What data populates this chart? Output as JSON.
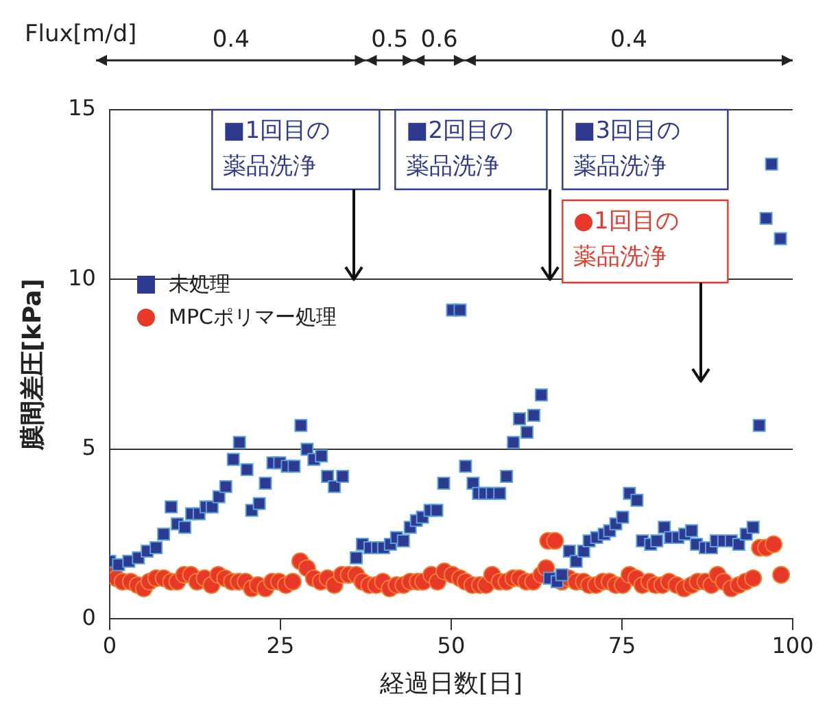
{
  "chart_data": {
    "type": "scatter",
    "xlabel": "経過日数[日]",
    "ylabel": "膜間差圧[kPa]",
    "xlim": [
      0,
      100
    ],
    "xticks": [
      0,
      25,
      50,
      75,
      100
    ],
    "ylim": [
      0,
      15
    ],
    "yticks": [
      0,
      5,
      10,
      15
    ],
    "grid": "y",
    "legend": "top left",
    "series": [
      {
        "name": "未処理",
        "color": "#2e3a8f",
        "marker": "square",
        "x": [
          0,
          1.3,
          2.8,
          4.2,
          5.5,
          6.8,
          7.9,
          9.0,
          9.9,
          11.0,
          12.0,
          13.1,
          14.1,
          15.0,
          16.0,
          17.0,
          18.1,
          19.0,
          20.1,
          20.8,
          21.9,
          22.8,
          23.9,
          24.9,
          26.0,
          27.0,
          28.0,
          28.9,
          29.9,
          31.0,
          31.9,
          32.9,
          34.1,
          36.1,
          37.0,
          38.1,
          39.2,
          40.1,
          41.1,
          42.0,
          43.0,
          44.0,
          44.9,
          45.8,
          46.9,
          47.9,
          48.9,
          50.2,
          51.3,
          52.1,
          53.2,
          54.0,
          54.9,
          56.0,
          57.1,
          58.1,
          59.1,
          60.0,
          61.1,
          62.1,
          63.2,
          64.4,
          65.5,
          66.2,
          67.3,
          68.3,
          69.4,
          70.2,
          71.3,
          72.4,
          73.2,
          74.1,
          75.1,
          76.1,
          77.2,
          78.0,
          79.2,
          80.1,
          81.2,
          82.1,
          83.2,
          84.2,
          85.2,
          85.9,
          87.2,
          88.1,
          88.8,
          89.9,
          91.0,
          92.1,
          93.2,
          94.2,
          95.1,
          96.1,
          96.9,
          98.2
        ],
        "values": [
          1.7,
          1.6,
          1.7,
          1.8,
          2.0,
          2.1,
          2.5,
          3.3,
          2.8,
          2.7,
          3.1,
          3.1,
          3.3,
          3.3,
          3.6,
          3.9,
          4.7,
          5.2,
          4.4,
          3.2,
          3.4,
          4.0,
          4.6,
          4.6,
          4.5,
          4.5,
          5.7,
          5.0,
          4.7,
          4.8,
          4.2,
          3.9,
          4.2,
          1.8,
          2.2,
          2.1,
          2.1,
          2.1,
          2.2,
          2.4,
          2.3,
          2.7,
          2.9,
          3.0,
          3.2,
          3.2,
          4.0,
          9.1,
          9.1,
          4.5,
          4.0,
          3.7,
          3.7,
          3.7,
          3.7,
          4.2,
          5.2,
          5.9,
          5.5,
          6.0,
          6.6,
          1.2,
          1.1,
          1.3,
          2.0,
          1.7,
          2.0,
          2.3,
          2.4,
          2.5,
          2.6,
          2.8,
          3.0,
          3.7,
          3.5,
          2.3,
          2.2,
          2.3,
          2.7,
          2.4,
          2.4,
          2.5,
          2.6,
          2.2,
          2.1,
          2.1,
          2.3,
          2.3,
          2.3,
          2.2,
          2.5,
          2.7,
          5.7,
          11.8,
          13.4,
          11.2
        ]
      },
      {
        "name": "MPCポリマー処理",
        "color": "#e8382a",
        "marker": "circle",
        "x": [
          0,
          1.0,
          1.9,
          3.1,
          4.1,
          5.0,
          5.8,
          6.8,
          7.9,
          9.0,
          9.9,
          10.9,
          11.9,
          12.8,
          13.9,
          14.9,
          15.9,
          16.9,
          17.9,
          18.9,
          19.9,
          20.8,
          21.7,
          22.8,
          23.8,
          24.8,
          25.8,
          26.8,
          27.9,
          28.9,
          29.9,
          30.9,
          31.9,
          32.9,
          34.0,
          35.0,
          36.1,
          37.0,
          38.0,
          39.0,
          40.0,
          41.0,
          42.0,
          43.0,
          44.0,
          45.1,
          45.9,
          47.1,
          48.0,
          49.0,
          50.2,
          51.3,
          52.1,
          53.1,
          54.2,
          55.1,
          56.0,
          57.1,
          58.1,
          59.1,
          60.0,
          61.0,
          62.0,
          63.2,
          63.9,
          64.2,
          65.2,
          66.2,
          67.2,
          68.3,
          69.4,
          70.2,
          71.2,
          72.2,
          73.2,
          74.1,
          75.1,
          76.1,
          77.1,
          78.0,
          79.0,
          79.9,
          80.9,
          81.9,
          83.0,
          84.1,
          85.2,
          86.1,
          87.2,
          88.1,
          89.0,
          89.9,
          91.0,
          92.1,
          93.1,
          94.2,
          95.2,
          96.1,
          97.2,
          98.3
        ],
        "values": [
          1.3,
          1.2,
          1.1,
          1.1,
          1.0,
          0.9,
          1.1,
          1.2,
          1.2,
          1.1,
          1.1,
          1.3,
          1.3,
          1.1,
          1.2,
          1.0,
          1.3,
          1.2,
          1.1,
          1.1,
          1.1,
          0.9,
          1.0,
          0.9,
          1.1,
          1.1,
          1.0,
          1.1,
          1.7,
          1.5,
          1.2,
          1.1,
          1.2,
          1.0,
          1.3,
          1.3,
          1.3,
          1.1,
          1.0,
          1.0,
          1.1,
          0.9,
          1.0,
          1.0,
          1.1,
          1.1,
          1.1,
          1.3,
          1.1,
          1.4,
          1.3,
          1.2,
          1.1,
          1.0,
          1.0,
          1.0,
          1.3,
          1.1,
          1.1,
          1.2,
          1.2,
          1.1,
          1.1,
          1.3,
          1.5,
          2.3,
          2.3,
          1.1,
          1.2,
          1.1,
          1.1,
          1.0,
          1.0,
          1.1,
          1.1,
          1.0,
          1.0,
          1.3,
          1.2,
          1.0,
          1.1,
          1.0,
          1.0,
          1.1,
          1.0,
          0.9,
          1.0,
          1.1,
          1.1,
          1.0,
          1.3,
          1.1,
          0.9,
          1.0,
          1.1,
          1.2,
          2.1,
          2.1,
          2.2,
          1.3
        ]
      }
    ],
    "annotations": [
      "Flux[m/d]",
      "0.4",
      "0.5",
      "0.6",
      "0.4",
      "■1回目の薬品洗浄",
      "■2回目の薬品洗浄",
      "■3回目の薬品洗浄",
      "●1回目の薬品洗浄"
    ]
  }
}
